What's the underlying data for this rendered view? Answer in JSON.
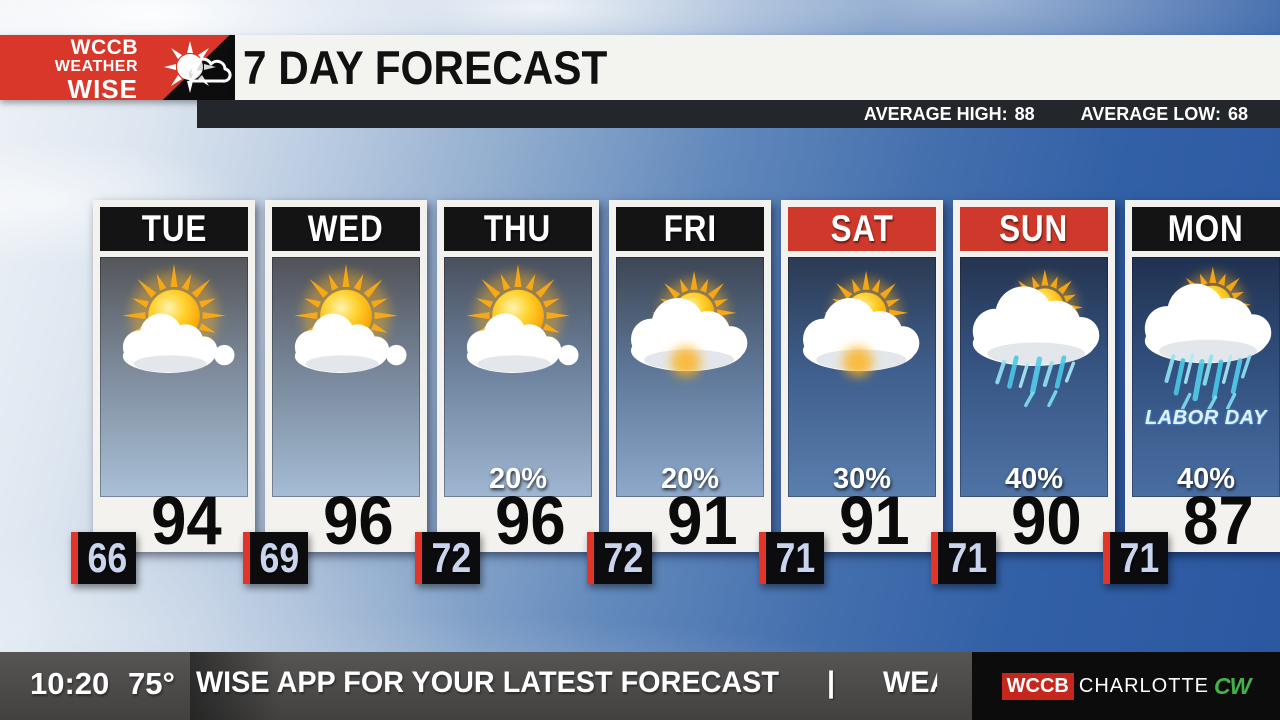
{
  "header": {
    "logo_line1": "WCCB",
    "logo_line2": "WEATHER",
    "logo_line3": "WISE",
    "title": "7 DAY FORECAST",
    "avg_high_label": "AVERAGE HIGH:",
    "avg_high_value": "88",
    "avg_low_label": "AVERAGE LOW:",
    "avg_low_value": "68",
    "logo_red": "#d8372a"
  },
  "forecast": {
    "days": [
      {
        "label": "TUE",
        "header_color": "#141414",
        "icon": "mostly-sunny",
        "precip": "",
        "high": "94",
        "low": "66",
        "note": "",
        "panel_top": "#54565a",
        "panel_mid": "#7e8c9d",
        "panel_bottom": "#a9c0d7"
      },
      {
        "label": "WED",
        "header_color": "#141414",
        "icon": "mostly-sunny",
        "precip": "",
        "high": "96",
        "low": "69",
        "note": "",
        "panel_top": "#505258",
        "panel_mid": "#78879a",
        "panel_bottom": "#a5bdd5"
      },
      {
        "label": "THU",
        "header_color": "#141414",
        "icon": "mostly-sunny",
        "precip": "20%",
        "high": "96",
        "low": "72",
        "note": "",
        "panel_top": "#49505e",
        "panel_mid": "#6e839e",
        "panel_bottom": "#9fb7d2"
      },
      {
        "label": "FRI",
        "header_color": "#141414",
        "icon": "partly-sunny",
        "precip": "20%",
        "high": "91",
        "low": "72",
        "note": "",
        "panel_top": "#3d4654",
        "panel_mid": "#5f7899",
        "panel_bottom": "#8ea9cb"
      },
      {
        "label": "SAT",
        "header_color": "#cf392c",
        "icon": "partly-sunny",
        "precip": "30%",
        "high": "91",
        "low": "71",
        "note": "",
        "panel_top": "#2b3a52",
        "panel_mid": "#3f5f8e",
        "panel_bottom": "#5a7fae"
      },
      {
        "label": "SUN",
        "header_color": "#cf392c",
        "icon": "showers-sun",
        "precip": "40%",
        "high": "90",
        "low": "71",
        "note": "",
        "panel_top": "#243450",
        "panel_mid": "#375685",
        "panel_bottom": "#4f73a5"
      },
      {
        "label": "MON",
        "header_color": "#141414",
        "icon": "rain-heavy",
        "precip": "40%",
        "high": "87",
        "low": "71",
        "note": "LABOR DAY",
        "panel_top": "#203150",
        "panel_mid": "#325180",
        "panel_bottom": "#4a6ea2"
      }
    ],
    "low_accent": "#e2352a"
  },
  "ticker": {
    "time": "10:20",
    "temp": "75°",
    "text": "WISE APP FOR YOUR LATEST FORECAST      |      WEATHERWISE FO",
    "station_wccb": "WCCB",
    "station_charlotte": "CHARLOTTE",
    "station_cw": "CW",
    "cw_green": "#45b049"
  }
}
